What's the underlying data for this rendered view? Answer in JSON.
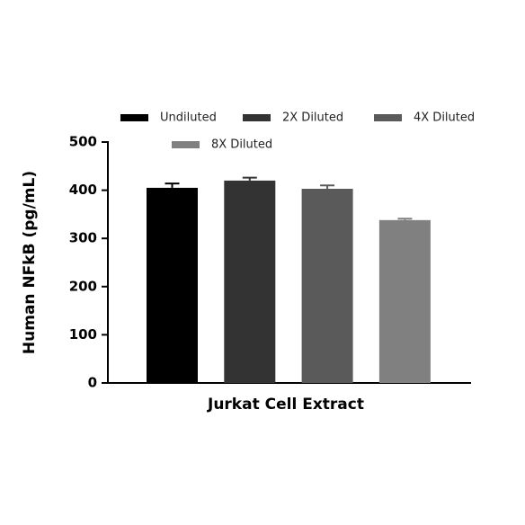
{
  "chart_data": {
    "type": "bar",
    "categories": [
      "Jurkat Cell Extract"
    ],
    "ylabel": "Human NFkB (pg/mL)",
    "ylim": [
      0,
      500
    ],
    "yticks": [
      0,
      100,
      200,
      300,
      400,
      500
    ],
    "series": [
      {
        "name": "Undiluted",
        "color": "#000000",
        "values": [
          405
        ],
        "errors": [
          9
        ]
      },
      {
        "name": "2X Diluted",
        "color": "#333333",
        "values": [
          420
        ],
        "errors": [
          6
        ]
      },
      {
        "name": "4X Diluted",
        "color": "#5a5a5a",
        "values": [
          403
        ],
        "errors": [
          7
        ]
      },
      {
        "name": "8X Diluted",
        "color": "#808080",
        "values": [
          338
        ],
        "errors": [
          3
        ]
      }
    ]
  }
}
